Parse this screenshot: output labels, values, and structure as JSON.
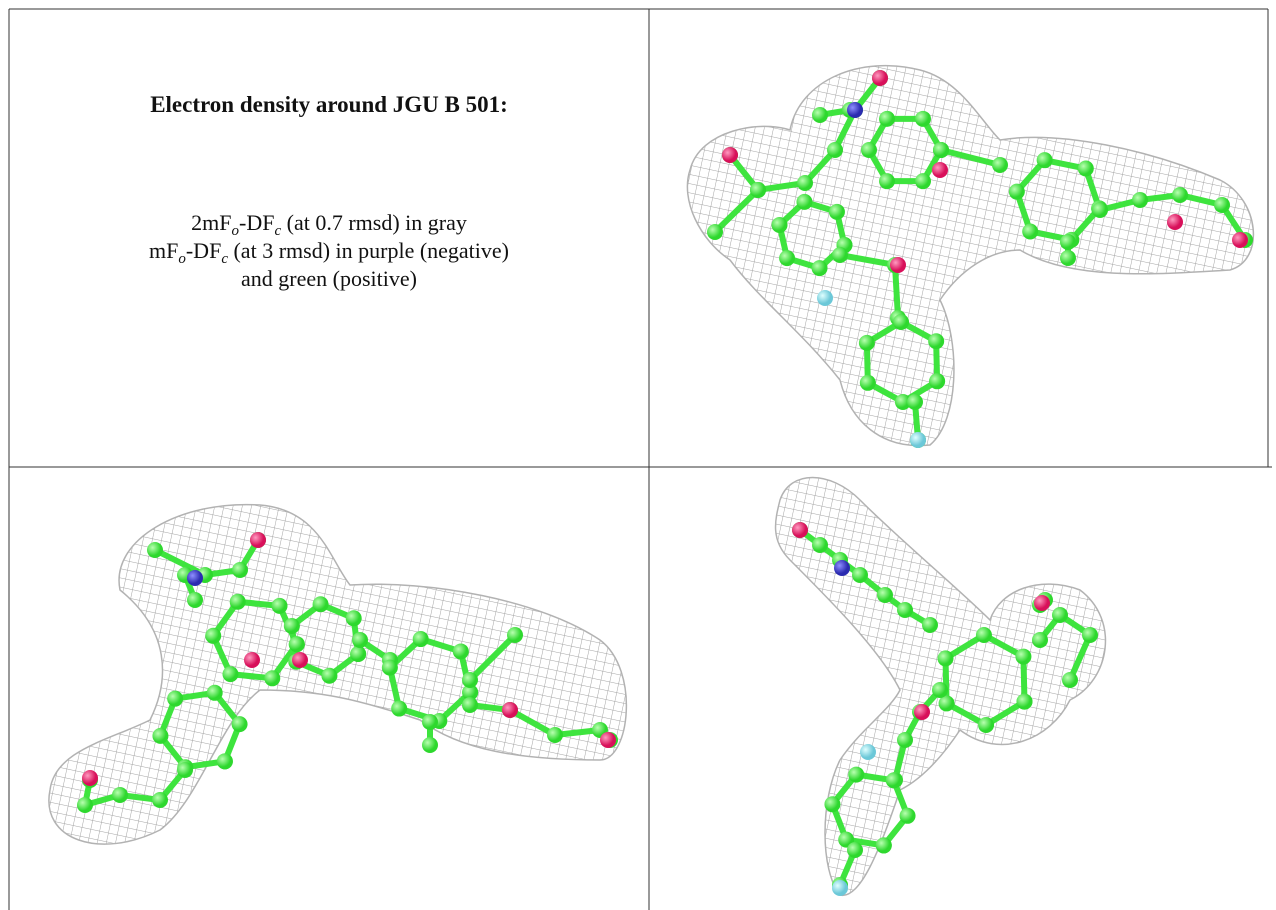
{
  "panel": {
    "title": "Electron density around JGU B 501:",
    "legend": [
      {
        "a": "2mF",
        "b": "o",
        "c": "-DF",
        "d": "c",
        "e": " (at 0.7 rmsd) in gray"
      },
      {
        "a": "mF",
        "b": "o",
        "c": "-DF",
        "d": "c",
        "e": " (at 3 rmsd) in purple (negative)"
      },
      {
        "a": "and green (positive)"
      }
    ]
  }
}
